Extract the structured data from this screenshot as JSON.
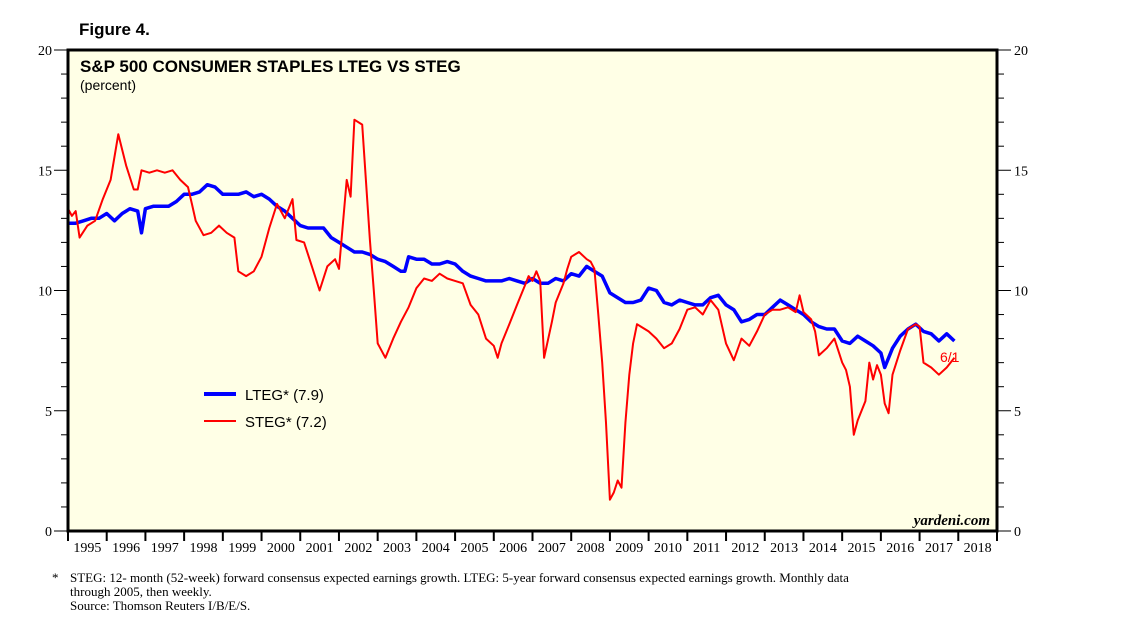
{
  "figure_label": "Figure 4.",
  "footnote": {
    "star": "*",
    "line1": "STEG: 12- month (52-week) forward consensus expected earnings growth. LTEG: 5-year forward consensus expected earnings growth. Monthly data",
    "line2": "through 2005, then weekly.",
    "source": "Source: Thomson Reuters I/B/E/S."
  },
  "chart_data": {
    "type": "line",
    "title": "S&P 500 CONSUMER STAPLES LTEG VS STEG",
    "subtitle": "(percent)",
    "xlabel": "",
    "ylabel": "percent",
    "xlim": [
      1995,
      2019
    ],
    "ylim": [
      0,
      20
    ],
    "y_ticks": [
      0,
      5,
      10,
      15,
      20
    ],
    "x_tick_labels": [
      "1995",
      "1996",
      "1997",
      "1998",
      "1999",
      "2000",
      "2001",
      "2002",
      "2003",
      "2004",
      "2005",
      "2006",
      "2007",
      "2008",
      "2009",
      "2010",
      "2011",
      "2012",
      "2013",
      "2014",
      "2015",
      "2016",
      "2017",
      "2018"
    ],
    "watermark": "yardeni.com",
    "end_annotation": "6/1",
    "grid": false,
    "legend_position": "left-middle",
    "background": "#ffffe6",
    "series": [
      {
        "name": "LTEG* (7.9)",
        "color": "#0000ff",
        "points": [
          [
            1995.0,
            12.8
          ],
          [
            1995.2,
            12.8
          ],
          [
            1995.4,
            12.9
          ],
          [
            1995.6,
            13.0
          ],
          [
            1995.8,
            13.0
          ],
          [
            1996.0,
            13.2
          ],
          [
            1996.2,
            12.9
          ],
          [
            1996.4,
            13.2
          ],
          [
            1996.6,
            13.4
          ],
          [
            1996.8,
            13.3
          ],
          [
            1996.9,
            12.4
          ],
          [
            1997.0,
            13.4
          ],
          [
            1997.2,
            13.5
          ],
          [
            1997.4,
            13.5
          ],
          [
            1997.6,
            13.5
          ],
          [
            1997.8,
            13.7
          ],
          [
            1998.0,
            14.0
          ],
          [
            1998.2,
            14.0
          ],
          [
            1998.4,
            14.1
          ],
          [
            1998.6,
            14.4
          ],
          [
            1998.8,
            14.3
          ],
          [
            1999.0,
            14.0
          ],
          [
            1999.2,
            14.0
          ],
          [
            1999.4,
            14.0
          ],
          [
            1999.6,
            14.1
          ],
          [
            1999.8,
            13.9
          ],
          [
            2000.0,
            14.0
          ],
          [
            2000.2,
            13.8
          ],
          [
            2000.4,
            13.5
          ],
          [
            2000.6,
            13.3
          ],
          [
            2000.8,
            13.0
          ],
          [
            2001.0,
            12.7
          ],
          [
            2001.2,
            12.6
          ],
          [
            2001.4,
            12.6
          ],
          [
            2001.6,
            12.6
          ],
          [
            2001.8,
            12.2
          ],
          [
            2002.0,
            12.0
          ],
          [
            2002.2,
            11.8
          ],
          [
            2002.4,
            11.6
          ],
          [
            2002.6,
            11.6
          ],
          [
            2002.8,
            11.5
          ],
          [
            2003.0,
            11.3
          ],
          [
            2003.2,
            11.2
          ],
          [
            2003.4,
            11.0
          ],
          [
            2003.6,
            10.8
          ],
          [
            2003.7,
            10.8
          ],
          [
            2003.8,
            11.4
          ],
          [
            2004.0,
            11.3
          ],
          [
            2004.2,
            11.3
          ],
          [
            2004.4,
            11.1
          ],
          [
            2004.6,
            11.1
          ],
          [
            2004.8,
            11.2
          ],
          [
            2005.0,
            11.1
          ],
          [
            2005.2,
            10.8
          ],
          [
            2005.4,
            10.6
          ],
          [
            2005.6,
            10.5
          ],
          [
            2005.8,
            10.4
          ],
          [
            2006.0,
            10.4
          ],
          [
            2006.2,
            10.4
          ],
          [
            2006.4,
            10.5
          ],
          [
            2006.6,
            10.4
          ],
          [
            2006.8,
            10.3
          ],
          [
            2007.0,
            10.5
          ],
          [
            2007.2,
            10.3
          ],
          [
            2007.4,
            10.3
          ],
          [
            2007.6,
            10.5
          ],
          [
            2007.8,
            10.4
          ],
          [
            2008.0,
            10.7
          ],
          [
            2008.2,
            10.6
          ],
          [
            2008.4,
            11.0
          ],
          [
            2008.6,
            10.8
          ],
          [
            2008.8,
            10.6
          ],
          [
            2009.0,
            9.9
          ],
          [
            2009.2,
            9.7
          ],
          [
            2009.4,
            9.5
          ],
          [
            2009.6,
            9.5
          ],
          [
            2009.8,
            9.6
          ],
          [
            2010.0,
            10.1
          ],
          [
            2010.2,
            10.0
          ],
          [
            2010.4,
            9.5
          ],
          [
            2010.6,
            9.4
          ],
          [
            2010.8,
            9.6
          ],
          [
            2011.0,
            9.5
          ],
          [
            2011.2,
            9.4
          ],
          [
            2011.4,
            9.4
          ],
          [
            2011.6,
            9.7
          ],
          [
            2011.8,
            9.8
          ],
          [
            2012.0,
            9.4
          ],
          [
            2012.2,
            9.2
          ],
          [
            2012.4,
            8.7
          ],
          [
            2012.6,
            8.8
          ],
          [
            2012.8,
            9.0
          ],
          [
            2013.0,
            9.0
          ],
          [
            2013.2,
            9.3
          ],
          [
            2013.4,
            9.6
          ],
          [
            2013.6,
            9.4
          ],
          [
            2013.8,
            9.2
          ],
          [
            2014.0,
            9.0
          ],
          [
            2014.2,
            8.7
          ],
          [
            2014.4,
            8.5
          ],
          [
            2014.6,
            8.4
          ],
          [
            2014.8,
            8.4
          ],
          [
            2015.0,
            7.9
          ],
          [
            2015.2,
            7.8
          ],
          [
            2015.4,
            8.1
          ],
          [
            2015.6,
            7.9
          ],
          [
            2015.8,
            7.7
          ],
          [
            2016.0,
            7.4
          ],
          [
            2016.1,
            6.8
          ],
          [
            2016.3,
            7.6
          ],
          [
            2016.5,
            8.1
          ],
          [
            2016.7,
            8.4
          ],
          [
            2016.9,
            8.6
          ],
          [
            2017.1,
            8.3
          ],
          [
            2017.3,
            8.2
          ],
          [
            2017.5,
            7.9
          ],
          [
            2017.7,
            8.2
          ],
          [
            2017.9,
            7.9
          ]
        ]
      },
      {
        "name": "STEG* (7.2)",
        "color": "#ff0000",
        "points": [
          [
            1995.0,
            13.4
          ],
          [
            1995.1,
            13.1
          ],
          [
            1995.2,
            13.3
          ],
          [
            1995.3,
            12.2
          ],
          [
            1995.5,
            12.7
          ],
          [
            1995.7,
            12.9
          ],
          [
            1995.9,
            13.8
          ],
          [
            1996.1,
            14.6
          ],
          [
            1996.3,
            16.5
          ],
          [
            1996.5,
            15.2
          ],
          [
            1996.7,
            14.2
          ],
          [
            1996.8,
            14.2
          ],
          [
            1996.9,
            15.0
          ],
          [
            1997.1,
            14.9
          ],
          [
            1997.3,
            15.0
          ],
          [
            1997.5,
            14.9
          ],
          [
            1997.7,
            15.0
          ],
          [
            1997.9,
            14.6
          ],
          [
            1998.1,
            14.3
          ],
          [
            1998.2,
            13.6
          ],
          [
            1998.3,
            12.9
          ],
          [
            1998.5,
            12.3
          ],
          [
            1998.7,
            12.4
          ],
          [
            1998.9,
            12.7
          ],
          [
            1999.1,
            12.4
          ],
          [
            1999.3,
            12.2
          ],
          [
            1999.4,
            10.8
          ],
          [
            1999.6,
            10.6
          ],
          [
            1999.8,
            10.8
          ],
          [
            2000.0,
            11.4
          ],
          [
            2000.2,
            12.6
          ],
          [
            2000.4,
            13.6
          ],
          [
            2000.6,
            13.0
          ],
          [
            2000.7,
            13.4
          ],
          [
            2000.8,
            13.8
          ],
          [
            2000.9,
            12.1
          ],
          [
            2001.1,
            12.0
          ],
          [
            2001.3,
            11.0
          ],
          [
            2001.5,
            10.0
          ],
          [
            2001.7,
            11.0
          ],
          [
            2001.9,
            11.3
          ],
          [
            2002.0,
            10.9
          ],
          [
            2002.2,
            14.6
          ],
          [
            2002.3,
            13.9
          ],
          [
            2002.4,
            17.1
          ],
          [
            2002.6,
            16.9
          ],
          [
            2002.8,
            12.1
          ],
          [
            2002.9,
            10.0
          ],
          [
            2003.0,
            7.8
          ],
          [
            2003.2,
            7.2
          ],
          [
            2003.4,
            8.0
          ],
          [
            2003.6,
            8.7
          ],
          [
            2003.8,
            9.3
          ],
          [
            2004.0,
            10.1
          ],
          [
            2004.2,
            10.5
          ],
          [
            2004.4,
            10.4
          ],
          [
            2004.6,
            10.7
          ],
          [
            2004.8,
            10.5
          ],
          [
            2005.0,
            10.4
          ],
          [
            2005.2,
            10.3
          ],
          [
            2005.4,
            9.4
          ],
          [
            2005.6,
            9.0
          ],
          [
            2005.8,
            8.0
          ],
          [
            2006.0,
            7.7
          ],
          [
            2006.1,
            7.2
          ],
          [
            2006.2,
            7.8
          ],
          [
            2006.4,
            8.6
          ],
          [
            2006.6,
            9.4
          ],
          [
            2006.8,
            10.2
          ],
          [
            2006.9,
            10.6
          ],
          [
            2007.0,
            10.4
          ],
          [
            2007.1,
            10.8
          ],
          [
            2007.2,
            10.4
          ],
          [
            2007.3,
            7.2
          ],
          [
            2007.5,
            8.7
          ],
          [
            2007.6,
            9.5
          ],
          [
            2007.8,
            10.3
          ],
          [
            2007.9,
            10.9
          ],
          [
            2008.0,
            11.4
          ],
          [
            2008.2,
            11.6
          ],
          [
            2008.4,
            11.3
          ],
          [
            2008.5,
            11.2
          ],
          [
            2008.6,
            10.9
          ],
          [
            2008.7,
            9.0
          ],
          [
            2008.8,
            7.0
          ],
          [
            2008.9,
            4.5
          ],
          [
            2009.0,
            1.3
          ],
          [
            2009.1,
            1.6
          ],
          [
            2009.2,
            2.1
          ],
          [
            2009.3,
            1.8
          ],
          [
            2009.4,
            4.5
          ],
          [
            2009.5,
            6.5
          ],
          [
            2009.6,
            7.8
          ],
          [
            2009.7,
            8.6
          ],
          [
            2009.8,
            8.5
          ],
          [
            2010.0,
            8.3
          ],
          [
            2010.2,
            8.0
          ],
          [
            2010.4,
            7.6
          ],
          [
            2010.6,
            7.8
          ],
          [
            2010.8,
            8.4
          ],
          [
            2011.0,
            9.2
          ],
          [
            2011.2,
            9.3
          ],
          [
            2011.4,
            9.0
          ],
          [
            2011.6,
            9.6
          ],
          [
            2011.8,
            9.2
          ],
          [
            2012.0,
            7.8
          ],
          [
            2012.2,
            7.1
          ],
          [
            2012.4,
            8.0
          ],
          [
            2012.6,
            7.7
          ],
          [
            2012.8,
            8.3
          ],
          [
            2013.0,
            9.0
          ],
          [
            2013.2,
            9.2
          ],
          [
            2013.4,
            9.2
          ],
          [
            2013.6,
            9.3
          ],
          [
            2013.8,
            9.1
          ],
          [
            2013.9,
            9.8
          ],
          [
            2014.0,
            9.1
          ],
          [
            2014.2,
            8.8
          ],
          [
            2014.3,
            8.3
          ],
          [
            2014.4,
            7.3
          ],
          [
            2014.6,
            7.6
          ],
          [
            2014.8,
            8.0
          ],
          [
            2015.0,
            7.0
          ],
          [
            2015.1,
            6.7
          ],
          [
            2015.2,
            6.0
          ],
          [
            2015.3,
            4.0
          ],
          [
            2015.4,
            4.6
          ],
          [
            2015.6,
            5.4
          ],
          [
            2015.7,
            7.0
          ],
          [
            2015.8,
            6.3
          ],
          [
            2015.9,
            6.9
          ],
          [
            2016.0,
            6.5
          ],
          [
            2016.1,
            5.3
          ],
          [
            2016.2,
            4.9
          ],
          [
            2016.3,
            6.5
          ],
          [
            2016.5,
            7.5
          ],
          [
            2016.7,
            8.4
          ],
          [
            2016.9,
            8.6
          ],
          [
            2017.0,
            8.5
          ],
          [
            2017.1,
            7.0
          ],
          [
            2017.3,
            6.8
          ],
          [
            2017.5,
            6.5
          ],
          [
            2017.7,
            6.8
          ],
          [
            2017.9,
            7.2
          ]
        ]
      }
    ]
  }
}
